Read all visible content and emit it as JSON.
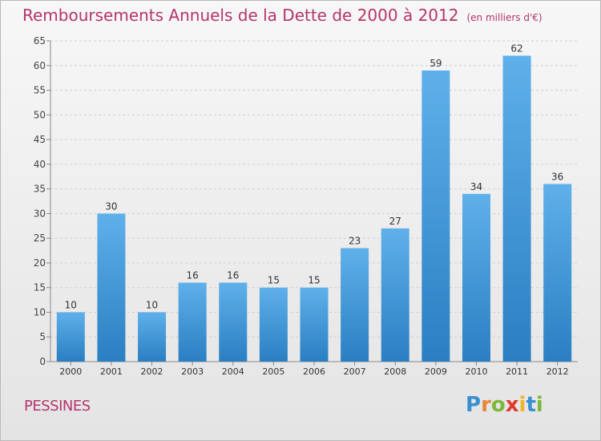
{
  "header": {
    "title": "Remboursements Annuels de la Dette de 2000 à 2012",
    "unit": "(en milliers d'€)"
  },
  "footer": {
    "commune": "PESSINES",
    "logo": "Proxiti"
  },
  "colors": {
    "title": "#b5346b",
    "bar_light": "#5fb0ea",
    "bar_dark": "#2a7fc2"
  },
  "chart_data": {
    "type": "bar",
    "title": "Remboursements Annuels de la Dette de 2000 à 2012",
    "categories": [
      "2000",
      "2001",
      "2002",
      "2003",
      "2004",
      "2005",
      "2006",
      "2007",
      "2008",
      "2009",
      "2010",
      "2011",
      "2012"
    ],
    "values": [
      10,
      30,
      10,
      16,
      16,
      15,
      15,
      23,
      27,
      59,
      34,
      62,
      36
    ],
    "ylim": [
      0,
      65
    ],
    "yticks": [
      0,
      5,
      10,
      15,
      20,
      25,
      30,
      35,
      40,
      45,
      50,
      55,
      60,
      65
    ],
    "grid": "horizontal dashed",
    "data_labels": true
  }
}
